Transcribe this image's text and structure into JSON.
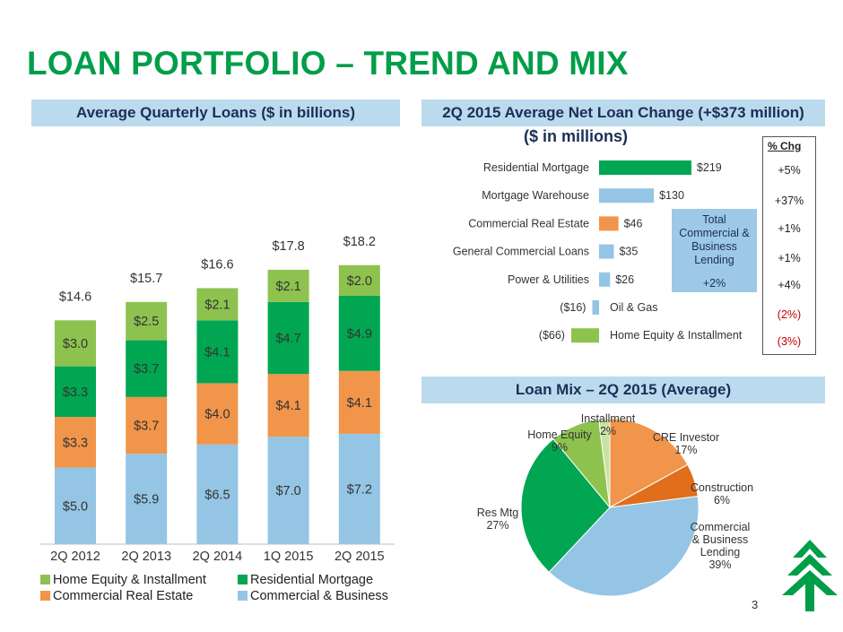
{
  "title": "LOAN PORTFOLIO – TREND AND MIX",
  "page_number": "3",
  "colors": {
    "green": "#009E49",
    "light_blue": "#94C5E4",
    "orange": "#F0954A",
    "light_green": "#8DC24F",
    "dark_orange": "#E06E1A",
    "pale_green": "#C9E2A2"
  },
  "chart_data": [
    {
      "type": "bar",
      "stacked": true,
      "title": "Average Quarterly Loans ($ in billions)",
      "categories": [
        "2Q 2012",
        "2Q 2013",
        "2Q 2014",
        "1Q 2015",
        "2Q 2015"
      ],
      "totals": [
        "$14.6",
        "$15.7",
        "$16.6",
        "$17.8",
        "$18.2"
      ],
      "ylim": [
        0,
        20
      ],
      "series": [
        {
          "name": "Commercial & Business",
          "color": "#94C5E4",
          "values": [
            5.0,
            5.9,
            6.5,
            7.0,
            7.2
          ],
          "labels": [
            "$5.0",
            "$5.9",
            "$6.5",
            "$7.0",
            "$7.2"
          ]
        },
        {
          "name": "Commercial Real Estate",
          "color": "#F0954A",
          "values": [
            3.3,
            3.7,
            4.0,
            4.1,
            4.1
          ],
          "labels": [
            "$3.3",
            "$3.7",
            "$4.0",
            "$4.1",
            "$4.1"
          ]
        },
        {
          "name": "Residential Mortgage",
          "color": "#00A651",
          "values": [
            3.3,
            3.7,
            4.1,
            4.7,
            4.9
          ],
          "labels": [
            "$3.3",
            "$3.7",
            "$4.1",
            "$4.7",
            "$4.9"
          ]
        },
        {
          "name": "Home Equity & Installment",
          "color": "#8DC24F",
          "values": [
            3.0,
            2.5,
            2.1,
            2.1,
            2.0
          ],
          "labels": [
            "$3.0",
            "$2.5",
            "$2.1",
            "$2.1",
            "$2.0"
          ]
        }
      ],
      "legend": [
        {
          "name": "Home Equity & Installment",
          "color": "#8DC24F"
        },
        {
          "name": "Residential Mortgage",
          "color": "#00A651"
        },
        {
          "name": "Commercial Real Estate",
          "color": "#F0954A"
        },
        {
          "name": "Commercial & Business",
          "color": "#94C5E4"
        }
      ]
    },
    {
      "type": "bar",
      "orientation": "horizontal",
      "title": "2Q 2015 Average Net Loan Change (+$373 million)",
      "subtitle": "($ in millions)",
      "categories": [
        "Residential Mortgage",
        "Mortgage Warehouse",
        "Commercial Real Estate",
        "General Commercial Loans",
        "Power & Utilities",
        "Oil & Gas",
        "Home Equity & Installment"
      ],
      "values": [
        219,
        130,
        46,
        35,
        26,
        -16,
        -66
      ],
      "value_labels": [
        "$219",
        "$130",
        "$46",
        "$35",
        "$26",
        "($16)",
        "($66)"
      ],
      "colors": [
        "#00A651",
        "#94C5E4",
        "#F0954A",
        "#94C5E4",
        "#94C5E4",
        "#94C5E4",
        "#8DC24F"
      ],
      "pct_change_header": "% Chg",
      "pct_change": [
        "+5%",
        "+37%",
        "+1%",
        "+1%",
        "+4%",
        "(2%)",
        "(3%)"
      ],
      "pct_change_colors": [
        "#222222",
        "#222222",
        "#222222",
        "#222222",
        "#222222",
        "#C00000",
        "#C00000"
      ],
      "group_box": {
        "label": "Total Commercial & Business Lending",
        "value": "+2%"
      }
    },
    {
      "type": "pie",
      "title": "Loan Mix – 2Q 2015 (Average)",
      "slices": [
        {
          "name": "CRE Investor",
          "value": 17,
          "label": "17%",
          "color": "#F0954A"
        },
        {
          "name": "Construction",
          "value": 6,
          "label": "6%",
          "color": "#E06E1A"
        },
        {
          "name": "Commercial & Business Lending",
          "value": 39,
          "label": "39%",
          "color": "#94C5E4"
        },
        {
          "name": "Res Mtg",
          "value": 27,
          "label": "27%",
          "color": "#00A651"
        },
        {
          "name": "Home Equity",
          "value": 9,
          "label": "9%",
          "color": "#8DC24F"
        },
        {
          "name": "Installment",
          "value": 2,
          "label": "2%",
          "color": "#C9E2A2"
        }
      ]
    }
  ]
}
